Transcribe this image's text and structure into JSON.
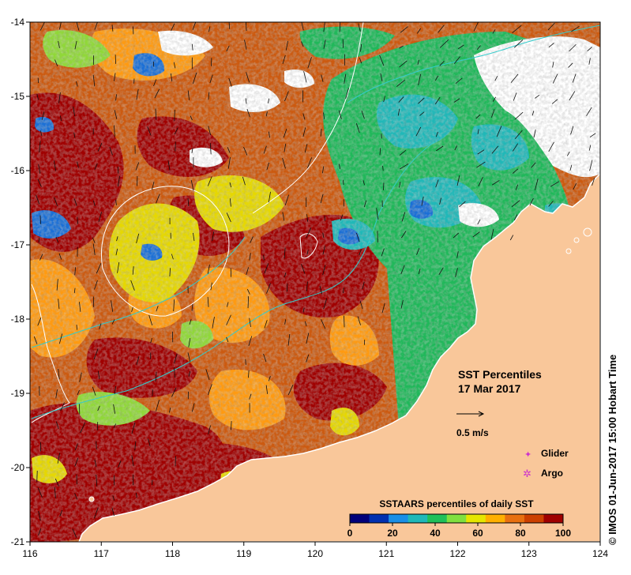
{
  "map": {
    "lon_ticks": [
      "116",
      "117",
      "118",
      "119",
      "120",
      "121",
      "122",
      "123",
      "124"
    ],
    "lat_ticks": [
      "-14",
      "-15",
      "-16",
      "-17",
      "-18",
      "-19",
      "-20",
      "-21"
    ],
    "lon_range": [
      116,
      124
    ],
    "lat_range": [
      -21,
      -14
    ],
    "land_color": "#f9c79a",
    "frame_color": "#000000"
  },
  "annotation": {
    "title": "SST Percentiles",
    "date": "17 Mar 2017",
    "vector_scale_label": "0.5 m/s"
  },
  "legend": {
    "glider_symbol": "✦",
    "glider_label": "Glider",
    "argo_symbol": "✲",
    "argo_label": "Argo",
    "marker_color": "#cc33cc"
  },
  "colorbar": {
    "title": "SSTAARS percentiles of daily SST",
    "colors": [
      "#00007a",
      "#0030b0",
      "#1a8fe6",
      "#20b8b8",
      "#20c05a",
      "#80e040",
      "#e6e600",
      "#ffb000",
      "#e87010",
      "#cc4000",
      "#a00000"
    ],
    "tick_labels": [
      "0",
      "20",
      "40",
      "60",
      "80",
      "100"
    ]
  },
  "credit": "© IMOS 01-Jun-2017 15:00 Hobart Time"
}
